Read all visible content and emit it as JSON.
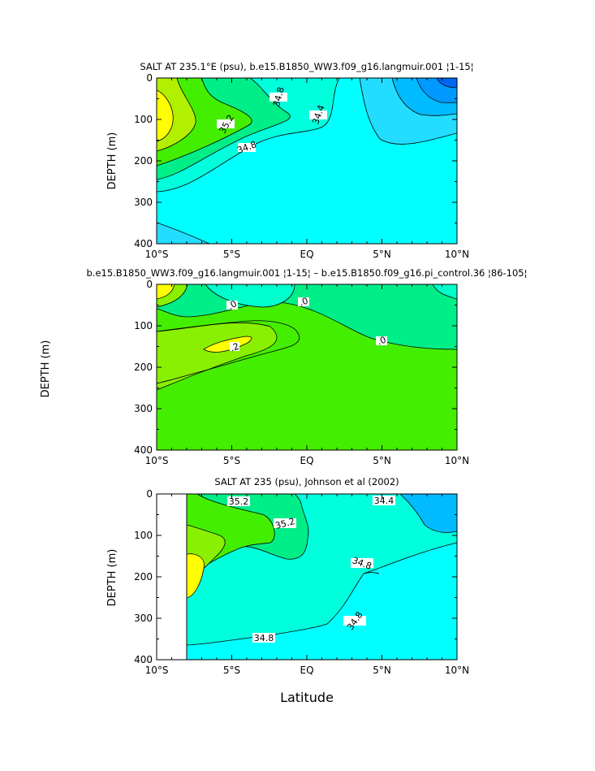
{
  "xlabel": "Latitude",
  "chart_data": [
    {
      "type": "contour",
      "title": "SALT AT 235.1°E (psu), b.e15.B1850_WW3.f09_g16.langmuir.001 ¦1-15¦",
      "ylabel": "DEPTH (m)",
      "x_ticks": [
        "10°S",
        "5°S",
        "EQ",
        "5°N",
        "10°N"
      ],
      "y_ticks": [
        "0",
        "100",
        "200",
        "300",
        "400"
      ],
      "xlim": [
        -10,
        10
      ],
      "ylim": [
        400,
        0
      ],
      "contour_labels": [
        "35.2",
        "34.8",
        "34.8",
        "34.4"
      ],
      "fill_colors": [
        "#ffff00",
        "#b0f000",
        "#44ee00",
        "#00ee88",
        "#00ffdd",
        "#00ffff",
        "#22ddff",
        "#00bbff",
        "#0099ff",
        "#0066ee"
      ]
    },
    {
      "type": "contour",
      "title": "b.e15.B1850_WW3.f09_g16.langmuir.001 ¦1-15¦ – b.e15.B1850.f09_g16.pi_control.36 ¦86-105¦",
      "ylabel": "DEPTH (m)",
      "x_ticks": [
        "10°S",
        "5°S",
        "EQ",
        "5°N",
        "10°N"
      ],
      "y_ticks": [
        "0",
        "100",
        "200",
        "300",
        "400"
      ],
      "xlim": [
        -10,
        10
      ],
      "ylim": [
        400,
        0
      ],
      "contour_labels": [
        ".0",
        ".0",
        ".0",
        ".2"
      ],
      "fill_colors": [
        "#ffff00",
        "#88f000",
        "#44ee00",
        "#00ee88",
        "#00ffcc"
      ]
    },
    {
      "type": "contour",
      "title": "SALT AT 235 (psu), Johnson et al (2002)",
      "ylabel": "DEPTH (m)",
      "x_ticks": [
        "10°S",
        "5°S",
        "EQ",
        "5°N",
        "10°N"
      ],
      "y_ticks": [
        "0",
        "100",
        "200",
        "300",
        "400"
      ],
      "xlim": [
        -10,
        10
      ],
      "ylim": [
        400,
        0
      ],
      "contour_labels": [
        "35.2",
        "35.2",
        "34.4",
        "34.8",
        "34.8",
        "34.8"
      ],
      "fill_colors": [
        "#ffff00",
        "#88f000",
        "#44ee00",
        "#00ee88",
        "#00ffdd",
        "#00ffff",
        "#00bbff"
      ]
    }
  ]
}
